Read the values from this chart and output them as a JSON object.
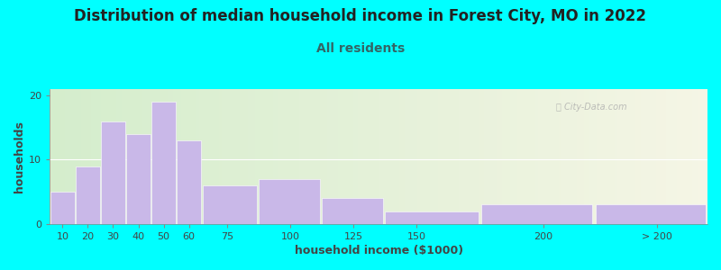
{
  "title": "Distribution of median household income in Forest City, MO in 2022",
  "subtitle": "All residents",
  "xlabel": "household income ($1000)",
  "ylabel": "households",
  "bar_color": "#c9b8e8",
  "bar_edgecolor": "#ffffff",
  "categories": [
    "10",
    "20",
    "30",
    "40",
    "50",
    "60",
    "75",
    "100",
    "125",
    "150",
    "200",
    "> 200"
  ],
  "values": [
    5,
    9,
    16,
    14,
    19,
    13,
    6,
    7,
    4,
    2,
    3,
    3
  ],
  "bar_left_edges": [
    5,
    15,
    25,
    35,
    45,
    55,
    65,
    87,
    112,
    137,
    175,
    220
  ],
  "bar_right_edges": [
    15,
    25,
    35,
    45,
    55,
    65,
    87,
    112,
    137,
    175,
    220,
    265
  ],
  "tick_positions": [
    10,
    20,
    30,
    40,
    50,
    60,
    75,
    100,
    125,
    150,
    200,
    245
  ],
  "xlim": [
    5,
    265
  ],
  "ylim": [
    0,
    21
  ],
  "yticks": [
    0,
    10,
    20
  ],
  "bg_color_left": "#d4edcc",
  "bg_color_right": "#f5f5e5",
  "outer_bg": "#00ffff",
  "title_fontsize": 12,
  "subtitle_fontsize": 10,
  "title_color": "#222222",
  "subtitle_color": "#336666",
  "axis_label_fontsize": 9,
  "tick_label_fontsize": 8,
  "watermark_text": "City-Data.com",
  "watermark_color": "#aaaaaa"
}
